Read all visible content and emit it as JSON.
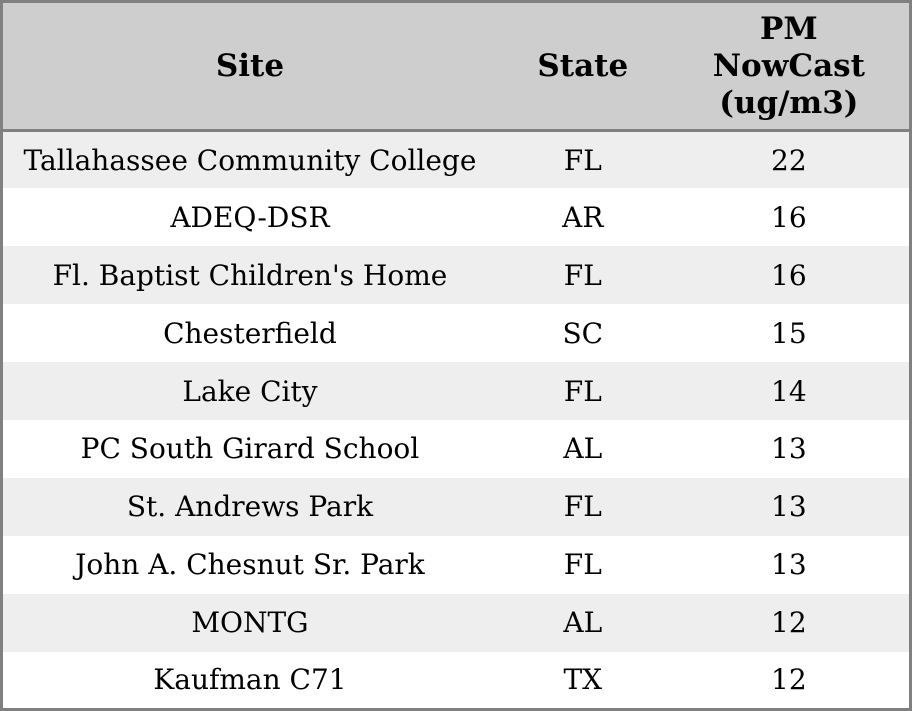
{
  "chart_data": {
    "type": "table",
    "columns": [
      "Site",
      "State",
      "PM NowCast (ug/m3)"
    ],
    "rows": [
      [
        "Tallahassee Community College",
        "FL",
        22
      ],
      [
        "ADEQ-DSR",
        "AR",
        16
      ],
      [
        "Fl. Baptist Children's Home",
        "FL",
        16
      ],
      [
        "Chesterfield",
        "SC",
        15
      ],
      [
        "Lake City",
        "FL",
        14
      ],
      [
        "PC South Girard School",
        "AL",
        13
      ],
      [
        "St. Andrews Park",
        "FL",
        13
      ],
      [
        "John A. Chesnut Sr. Park",
        "FL",
        13
      ],
      [
        "MONTG",
        "AL",
        12
      ],
      [
        "Kaufman C71",
        "TX",
        12
      ]
    ]
  },
  "colors": {
    "header_bg": "#cecece",
    "row_alt_bg": "#eeeeee",
    "row_bg": "#ffffff",
    "border": "#808080",
    "text": "#000000"
  }
}
